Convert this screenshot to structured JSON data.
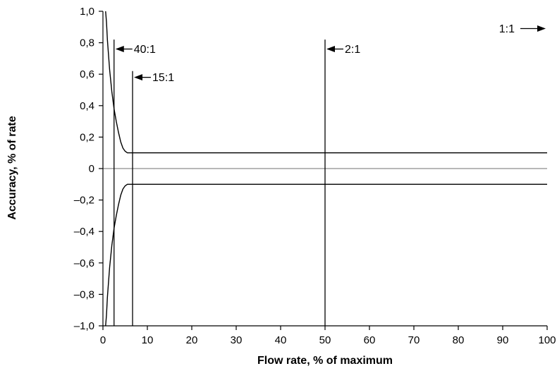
{
  "chart_data": {
    "type": "line",
    "title": "",
    "xlabel": "Flow rate, % of maximum",
    "ylabel": "Accuracy, % of rate",
    "xlim": [
      0,
      100
    ],
    "ylim": [
      -1.0,
      1.0
    ],
    "x_ticks": [
      0,
      10,
      20,
      30,
      40,
      50,
      60,
      70,
      80,
      90,
      100
    ],
    "x_tick_labels": [
      "0",
      "10",
      "20",
      "30",
      "40",
      "50",
      "60",
      "70",
      "80",
      "90",
      "100"
    ],
    "y_ticks": [
      1.0,
      0.8,
      0.6,
      0.4,
      0.2,
      0.0,
      -0.2,
      -0.4,
      -0.6,
      -0.8,
      -1.0
    ],
    "y_tick_labels": [
      "1,0",
      "0,8",
      "0,6",
      "0,4",
      "0,2",
      "0",
      "–0,2",
      "–0,4",
      "–0,6",
      "–0,8",
      "–1,0"
    ],
    "grid": false,
    "series": [
      {
        "x": [
          0.6,
          0.8,
          1.0,
          1.5,
          2.0,
          2.5,
          3.0,
          3.5,
          4.0,
          4.5,
          5.0,
          5.5,
          6.0,
          7.0,
          8.0,
          10,
          20,
          30,
          40,
          50,
          60,
          70,
          80,
          90,
          100
        ],
        "values": [
          1.0,
          0.93,
          0.82,
          0.63,
          0.49,
          0.38,
          0.3,
          0.23,
          0.17,
          0.13,
          0.11,
          0.1,
          0.1,
          0.1,
          0.1,
          0.1,
          0.1,
          0.1,
          0.1,
          0.1,
          0.1,
          0.1,
          0.1,
          0.1,
          0.1
        ],
        "color": "#000000"
      },
      {
        "x": [
          0.6,
          0.8,
          1.0,
          1.5,
          2.0,
          2.5,
          3.0,
          3.5,
          4.0,
          4.5,
          5.0,
          5.5,
          6.0,
          7.0,
          8.0,
          10,
          20,
          30,
          40,
          50,
          60,
          70,
          80,
          90,
          100
        ],
        "values": [
          -1.0,
          -0.93,
          -0.82,
          -0.63,
          -0.49,
          -0.38,
          -0.3,
          -0.23,
          -0.17,
          -0.13,
          -0.11,
          -0.1,
          -0.1,
          -0.1,
          -0.1,
          -0.1,
          -0.1,
          -0.1,
          -0.1,
          -0.1,
          -0.1,
          -0.1,
          -0.1,
          -0.1,
          -0.1
        ],
        "color": "#000000"
      }
    ],
    "zero_line": {
      "y": 0,
      "color": "#a0a0a0"
    },
    "markers": [
      {
        "label": "40:1",
        "x": 2.5,
        "y_top": 0.82,
        "label_y": 0.76
      },
      {
        "label": "15:1",
        "x": 6.67,
        "y_top": 0.62,
        "label_y": 0.58
      },
      {
        "label": "2:1",
        "x": 50,
        "y_top": 0.82,
        "label_y": 0.76
      },
      {
        "label": "1:1",
        "x": 100,
        "y_top": null,
        "label_y": 0.89,
        "arrow_direction": "right"
      }
    ]
  }
}
